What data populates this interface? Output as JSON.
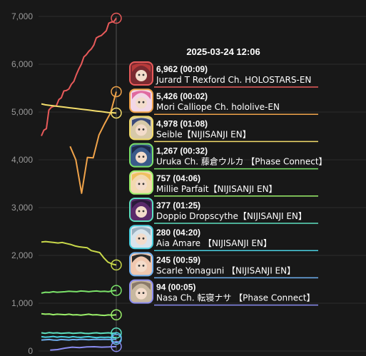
{
  "chart_data": {
    "type": "line",
    "title": "",
    "xlabel": "",
    "ylabel": "",
    "ylim": [
      0,
      7000
    ],
    "yticks": [
      "0",
      "1,000",
      "2,000",
      "3,000",
      "4,000",
      "5,000",
      "6,000",
      "7,000"
    ],
    "ytick_values": [
      0,
      1000,
      2000,
      3000,
      4000,
      5000,
      6000,
      7000
    ],
    "grid": true,
    "legend": "none",
    "tooltip": {
      "title": "2025-03-24 12:06",
      "entries": [
        {
          "value_text": "6,962 (00:09)",
          "name": "Jurard T Rexford Ch. HOLOSTARS-EN",
          "color": "#e85a5a",
          "avatar_bg": "#7a2a30",
          "avatar_hair": "#b83a3a"
        },
        {
          "value_text": "5,426 (00:02)",
          "name": "Mori Calliope Ch. hololive-EN",
          "color": "#f0a34a",
          "avatar_bg": "#f2d7e6",
          "avatar_hair": "#e06aa0"
        },
        {
          "value_text": "4,978 (01:08)",
          "name": "Seible【NIJISANJI EN】",
          "color": "#f2dc6b",
          "avatar_bg": "#d7c9a8",
          "avatar_hair": "#3a4a7a"
        },
        {
          "value_text": "1,267 (00:32)",
          "name": "Uruka Ch. 藤倉ウルカ 【Phase Connect】",
          "color": "#7be36a",
          "avatar_bg": "#3a5a8a",
          "avatar_hair": "#1e2a4a"
        },
        {
          "value_text": "757 (04:06)",
          "name": "Millie Parfait【NIJISANJI EN】",
          "color": "#9bf06a",
          "avatar_bg": "#f3d9b0",
          "avatar_hair": "#f0c060"
        },
        {
          "value_text": "377 (01:25)",
          "name": "Doppio Dropscythe【NIJISANJI EN】",
          "color": "#5de0c0",
          "avatar_bg": "#5a2a6a",
          "avatar_hair": "#2a1a3a"
        },
        {
          "value_text": "280 (04:20)",
          "name": "Aia Amare 【NIJISANJI EN】",
          "color": "#4ad0e0",
          "avatar_bg": "#d8e4ec",
          "avatar_hair": "#9ab0c0"
        },
        {
          "value_text": "245 (00:59)",
          "name": "Scarle Yonaguni 【NIJISANJI EN】",
          "color": "#6fb0f0",
          "avatar_bg": "#f0c8b0",
          "avatar_hair": "#2a2a2a"
        },
        {
          "value_text": "94 (00:05)",
          "name": "Nasa Ch. 転寝ナサ 【Phase Connect】",
          "color": "#8a8cf0",
          "avatar_bg": "#c8b8a0",
          "avatar_hair": "#8a7a6a"
        }
      ]
    },
    "series": [
      {
        "color": "#e85a5a",
        "values": [
          4500,
          4620,
          4650,
          5040,
          5100,
          5120,
          5130,
          5260,
          5300,
          5440,
          5450,
          5480,
          5580,
          5640,
          5780,
          5900,
          6000,
          6150,
          6200,
          6270,
          6320,
          6400,
          6550,
          6580,
          6600,
          6650,
          6700,
          6860,
          6880,
          6890,
          6962
        ]
      },
      {
        "color": "#f0a34a",
        "values": [
          4280,
          4000,
          3300,
          4050,
          4040,
          4520,
          4760,
          4980,
          5426
        ]
      },
      {
        "color": "#f2dc6b",
        "values": [
          5170,
          5150,
          5140,
          5130,
          5120,
          5110,
          5100,
          5090,
          5080,
          5070,
          5060,
          5050,
          5040,
          5030,
          5020,
          5010,
          5000,
          4990,
          4985,
          4978
        ]
      },
      {
        "color": "#c8d84a",
        "values": [
          2280,
          2290,
          2280,
          2270,
          2260,
          2270,
          2250,
          2230,
          2200,
          2180,
          2170,
          2160,
          2100,
          2080,
          2060,
          1950,
          1860,
          1820,
          1800
        ]
      },
      {
        "color": "#7be36a",
        "values": [
          1210,
          1230,
          1225,
          1240,
          1230,
          1235,
          1240,
          1250,
          1245,
          1240,
          1255,
          1250,
          1240,
          1250,
          1255,
          1245,
          1250,
          1240,
          1260,
          1267
        ]
      },
      {
        "color": "#9bf06a",
        "values": [
          780,
          770,
          775,
          760,
          770,
          765,
          760,
          770,
          755,
          760,
          750,
          760,
          770,
          755,
          760,
          750,
          745,
          755,
          750,
          757
        ]
      },
      {
        "color": "#5de0c0",
        "values": [
          380,
          370,
          385,
          375,
          380,
          370,
          375,
          380,
          370,
          375,
          380,
          370,
          365,
          375,
          380,
          370,
          375,
          380,
          372,
          377
        ]
      },
      {
        "color": "#4ad0e0",
        "values": [
          300,
          290,
          295,
          305,
          290,
          300,
          295,
          285,
          300,
          290,
          285,
          295,
          300,
          290,
          280,
          290,
          285,
          290,
          280,
          280
        ]
      },
      {
        "color": "#6fb0f0",
        "values": [
          230,
          235,
          240,
          230,
          225,
          240,
          235,
          230,
          240,
          235,
          245,
          240,
          235,
          240,
          245,
          240,
          245,
          240,
          245,
          245
        ]
      },
      {
        "color": "#8a8cf0",
        "values": [
          20,
          30,
          60,
          80,
          70,
          85,
          90,
          80,
          85,
          94
        ]
      }
    ],
    "series_x_start": [
      0,
      11.5,
      0,
      0,
      0,
      0,
      0,
      0,
      0,
      3.5
    ]
  }
}
